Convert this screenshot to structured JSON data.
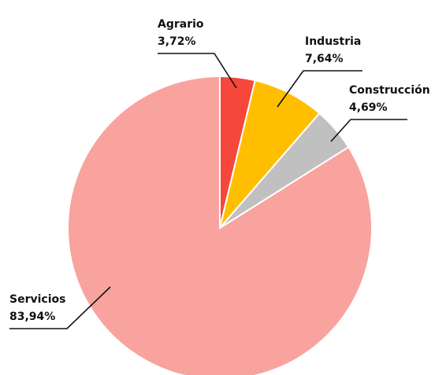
{
  "chart_data": {
    "type": "pie",
    "categories": [
      "Agrario",
      "Industria",
      "Construcción",
      "Servicios"
    ],
    "values": [
      3.72,
      7.64,
      4.69,
      83.94
    ],
    "value_labels": [
      "3,72%",
      "7,64%",
      "4,69%",
      "83,94%"
    ],
    "colors": [
      "#f5473c",
      "#ffbf00",
      "#c0c0c0",
      "#f9a39e"
    ]
  }
}
